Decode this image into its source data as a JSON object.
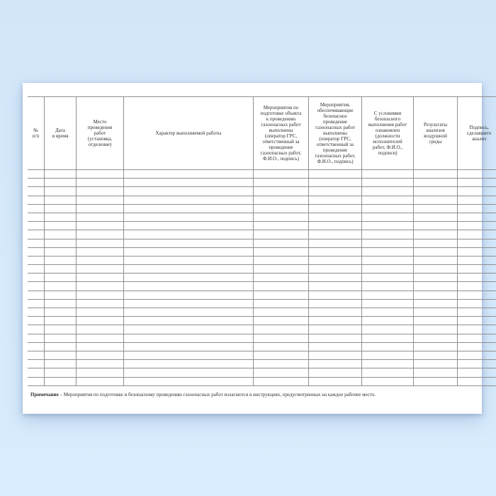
{
  "document": {
    "kind": "gas-hazardous-works-journal-form",
    "paper_color": "#ffffff",
    "background_color": "#d6e9fb",
    "border_color": "#8f8f8f",
    "text_color": "#2e2e2e"
  },
  "table": {
    "body_rows": 25,
    "columns": [
      {
        "id": "num",
        "label": "№\nп/п"
      },
      {
        "id": "date-time",
        "label": "Дата\nи время"
      },
      {
        "id": "location",
        "label": "Место\nпроведения\nработ\n(установка,\nотделение)"
      },
      {
        "id": "work-character",
        "label": "Характер выполняемой работы"
      },
      {
        "id": "prep-measures",
        "label": "Мероприятия по\nподготовке объекта\nк проведению\nгазоопасных работ\nвыполнены\n(оператор ГРС,\nответственный за\nпроведение\nгазоопасных работ,\nФ.И.О., подпись)"
      },
      {
        "id": "safety-measures",
        "label": "Мероприятия,\nобеспечивающие\nбезопасное\nпроведение\nгазоопасных работ\nвыполнены\n(оператор ГРС,\nответственный за\nпроведение\nгазоопасных работ,\nФ.И.О., подпись)"
      },
      {
        "id": "acknowledged",
        "label": "С условиями\nбезопасного\nвыполнения работ\nознакомлен\n(должности\nисполнителей\nработ, Ф.И.О.,\nподписи)"
      },
      {
        "id": "air-analysis-results",
        "label": "Результаты\nанализов\nвоздушной\nсреды"
      },
      {
        "id": "analyst-signature",
        "label": "Подпись,\nсделавшего\nанализ"
      }
    ]
  },
  "note": {
    "label": "Примечание",
    "separator": " – ",
    "text": "Мероприятия по подготовке и безопасному проведению газоопасных работ излагаются в инструкциях, предусмотренных на каждое рабочее место."
  }
}
